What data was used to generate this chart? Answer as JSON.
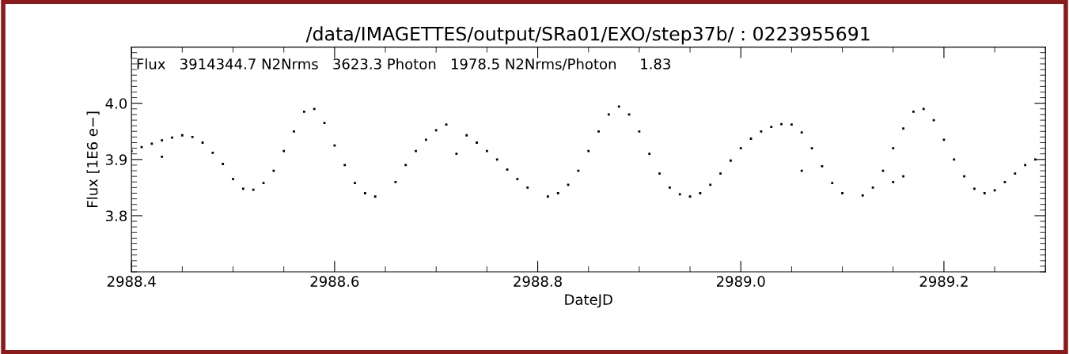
{
  "chart_data": {
    "type": "scatter",
    "title": "/data/IMAGETTES/output/SRa01/EXO/step37b/ : 0223955691",
    "xlabel": "DateJD",
    "ylabel": "Flux [1E6 e−]",
    "annotations": [
      "Flux   3914344.7 N2Nrms   3623.3 Photon   1978.5 N2Nrms/Photon     1.83"
    ],
    "x": [
      2988.4,
      2988.41,
      2988.42,
      2988.43,
      2988.44,
      2988.45,
      2988.46,
      2988.47,
      2988.48,
      2988.49,
      2988.5,
      2988.51,
      2988.52,
      2988.53,
      2988.54,
      2988.55,
      2988.56,
      2988.57,
      2988.58,
      2988.59,
      2988.6,
      2988.61,
      2988.62,
      2988.63,
      2988.64,
      2988.66,
      2988.67,
      2988.68,
      2988.69,
      2988.7,
      2988.71,
      2988.73,
      2988.74,
      2988.75,
      2988.76,
      2988.77,
      2988.78,
      2988.79,
      2988.81,
      2988.82,
      2988.83,
      2988.84,
      2988.85,
      2988.86,
      2988.87,
      2988.88,
      2988.89,
      2988.9,
      2988.91,
      2988.92,
      2988.93,
      2988.94,
      2988.95,
      2988.96,
      2988.97,
      2988.98,
      2988.99,
      2989.0,
      2989.01,
      2989.02,
      2989.03,
      2989.04,
      2989.05,
      2989.06,
      2989.07,
      2989.08,
      2989.09,
      2989.1,
      2989.12,
      2989.13,
      2989.14,
      2989.15,
      2989.16,
      2989.17,
      2989.18,
      2989.19,
      2989.2,
      2989.21,
      2989.22,
      2989.23,
      2989.24,
      2989.25,
      2989.26,
      2989.27,
      2989.28,
      2989.29,
      2988.43,
      2988.72,
      2989.06,
      2989.16,
      2989.15
    ],
    "values": [
      3.915,
      3.922,
      3.928,
      3.934,
      3.939,
      3.943,
      3.94,
      3.93,
      3.912,
      3.892,
      3.865,
      3.848,
      3.846,
      3.858,
      3.88,
      3.915,
      3.95,
      3.985,
      3.99,
      3.965,
      3.925,
      3.89,
      3.858,
      3.84,
      3.834,
      3.86,
      3.89,
      3.915,
      3.935,
      3.952,
      3.962,
      3.943,
      3.93,
      3.915,
      3.9,
      3.882,
      3.865,
      3.85,
      3.834,
      3.84,
      3.855,
      3.88,
      3.915,
      3.95,
      3.98,
      3.994,
      3.98,
      3.95,
      3.91,
      3.875,
      3.85,
      3.838,
      3.834,
      3.84,
      3.855,
      3.875,
      3.898,
      3.92,
      3.937,
      3.95,
      3.958,
      3.963,
      3.962,
      3.948,
      3.92,
      3.888,
      3.858,
      3.84,
      3.836,
      3.85,
      3.88,
      3.92,
      3.955,
      3.985,
      3.99,
      3.97,
      3.935,
      3.9,
      3.87,
      3.848,
      3.84,
      3.845,
      3.86,
      3.875,
      3.89,
      3.9,
      3.905,
      3.91,
      3.88,
      3.87,
      3.86
    ],
    "color": "#000000",
    "marker": "square",
    "xlim": [
      2988.4,
      2989.3
    ],
    "xticks": [
      2988.4,
      2988.6,
      2988.8,
      {
        "value": 2989.0,
        "label": "2989.0"
      },
      2989.2
    ],
    "ylim": [
      3.7,
      4.1
    ],
    "yticks": [
      3.8,
      3.9,
      {
        "value": 4.0,
        "label": "4.0"
      }
    ],
    "grid": false,
    "legend": false
  }
}
